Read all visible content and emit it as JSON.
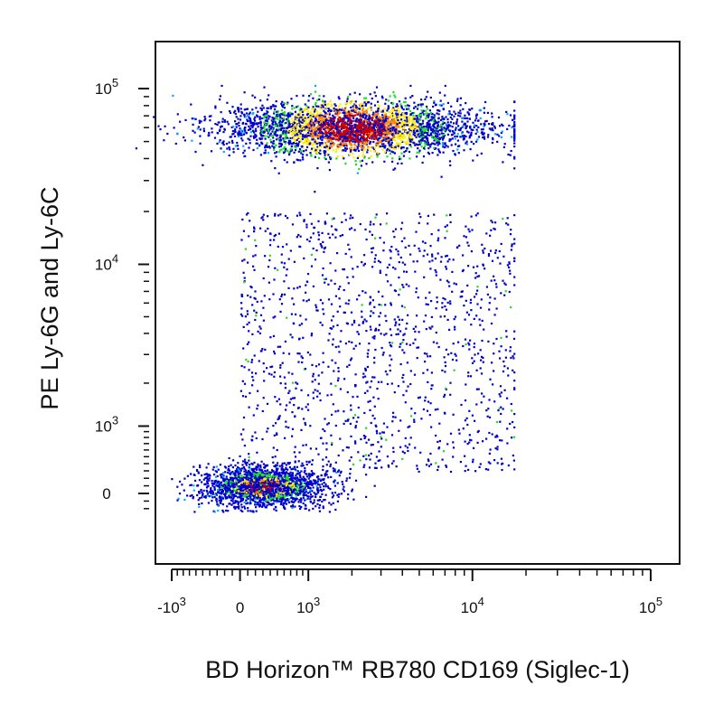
{
  "chart_data": {
    "type": "scatter",
    "subtype": "flow-cytometry-density-dot-plot",
    "xlabel": "BD Horizon™ RB780 CD169 (Siglec-1)",
    "ylabel": "PE Ly-6G and Ly-6C",
    "x_scale": "biexponential",
    "y_scale": "biexponential",
    "xlim": [
      -2000,
      200000
    ],
    "ylim": [
      -250,
      180000
    ],
    "grid": false,
    "legend": "none",
    "x_ticks": [
      {
        "value": -1000,
        "base": "-10",
        "exp": "3"
      },
      {
        "value": 0,
        "base": "0",
        "exp": ""
      },
      {
        "value": 1000,
        "base": "10",
        "exp": "3"
      },
      {
        "value": 10000,
        "base": "10",
        "exp": "4"
      },
      {
        "value": 100000,
        "base": "10",
        "exp": "5"
      }
    ],
    "y_ticks": [
      {
        "value": 0,
        "base": "0",
        "exp": ""
      },
      {
        "value": 1000,
        "base": "10",
        "exp": "3"
      },
      {
        "value": 10000,
        "base": "10",
        "exp": "4"
      },
      {
        "value": 100000,
        "base": "10",
        "exp": "5"
      }
    ],
    "density_colors": [
      "#0000cc",
      "#00aaff",
      "#22dd22",
      "#ffee00",
      "#ff8800",
      "#cc0000"
    ],
    "populations": [
      {
        "description_hidden": true,
        "x_center": 2000,
        "y_center": 60000,
        "x_min": 0,
        "x_max": 18000,
        "y_min": 20000,
        "y_max": 100000,
        "count": 3400,
        "peak": "high"
      },
      {
        "description_hidden": true,
        "x_center": 300,
        "y_center": 100,
        "x_min": -500,
        "x_max": 1500,
        "y_min": -120,
        "y_max": 450,
        "count": 2000,
        "peak": "medium"
      },
      {
        "description_hidden": true,
        "x_center": 2500,
        "y_center": 3000,
        "x_min": 0,
        "x_max": 18000,
        "y_min": 300,
        "y_max": 20000,
        "count": 1300,
        "peak": "low"
      }
    ]
  }
}
